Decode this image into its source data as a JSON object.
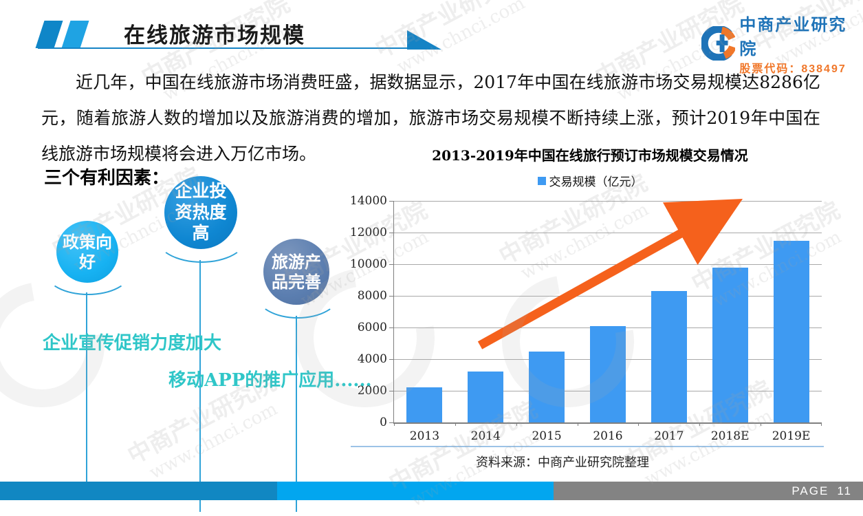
{
  "header": {
    "title": "在线旅游市场规模"
  },
  "logo": {
    "name": "中商产业研究院",
    "stock_label": "股票代码：838497",
    "blue": "#1e73b8",
    "orange": "#f0772a"
  },
  "intro": {
    "lines": [
      "近几年，中国在线旅游市场消费旺盛，据数据显示，2017年中国在线旅游市场交易规模达8286亿",
      "元，随着旅游人数的增加以及旅游消费的增加，旅游市场交易规模不断持续上涨，预计2019年中国在",
      "线旅游市场规模将会进入万亿市场。"
    ]
  },
  "factors": {
    "heading": "三个有利因素：",
    "bubbles": [
      {
        "label": "政策向好",
        "lines": [
          "政策向",
          "好"
        ],
        "color": "#17b2f2"
      },
      {
        "label": "企业投资热度高",
        "lines": [
          "企业投",
          "资热度",
          "高"
        ],
        "color": "#0f87d2"
      },
      {
        "label": "旅游产品完善",
        "lines": [
          "旅游产",
          "品完善"
        ],
        "color": "#5b7eb0"
      }
    ],
    "notes": [
      "企业宣传促销力度加大",
      "移动APP的推广应用......"
    ]
  },
  "chart_data": {
    "type": "bar",
    "title": "2013-2019年中国在线旅行预订市场规模交易情况",
    "legend": "交易规模（亿元）",
    "legend_position": "top",
    "categories": [
      "2013",
      "2014",
      "2015",
      "2016",
      "2017",
      "2018E",
      "2019E"
    ],
    "values": [
      2200,
      3200,
      4500,
      6100,
      8286,
      9800,
      11500
    ],
    "ylim": [
      0,
      14000
    ],
    "yticks": [
      0,
      2000,
      4000,
      6000,
      8000,
      10000,
      12000,
      14000
    ],
    "grid": true,
    "bar_color": "#3e9af2",
    "grid_color": "#a8a8a8",
    "arrow_color": "#f5611c",
    "xlabel": "",
    "ylabel": ""
  },
  "source": {
    "text": "资料来源：中商产业研究院整理"
  },
  "footer": {
    "page_label": "PAGE",
    "page_number": "11",
    "colors": {
      "left": "#1187c2",
      "middle": "#02a6ef",
      "right": "#838383"
    }
  },
  "watermark": {
    "line1": "中商产业研究院",
    "line2": "www.chnci.com"
  }
}
